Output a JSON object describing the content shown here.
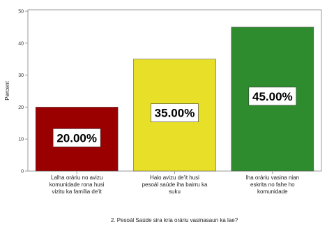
{
  "chart_data": {
    "type": "bar",
    "title": "",
    "ylabel": "Percent",
    "xlabel": "2. Pesoál Saúde sira kria oráriu vasinasaun ka lae?",
    "ylim": [
      0,
      50
    ],
    "yticks": [
      "0",
      "10",
      "20",
      "30",
      "40",
      "50"
    ],
    "grid": false,
    "legend": "none",
    "categories": [
      [
        "Lalha oráriu no avizu",
        "komunidade rona husi",
        "vizitu ka família de'it"
      ],
      [
        "Halo avizu de'it husi",
        "pesoál saúde iha bairru ka",
        "suku"
      ],
      [
        "Iha oráriu vasina nian",
        "eskrita no fahe ho",
        "komunidade"
      ]
    ],
    "values": [
      20,
      35,
      45
    ],
    "data_labels": [
      "20.00%",
      "35.00%",
      "45.00%"
    ],
    "colors": [
      "#9b0000",
      "#e8e028",
      "#2e8b2e"
    ]
  }
}
